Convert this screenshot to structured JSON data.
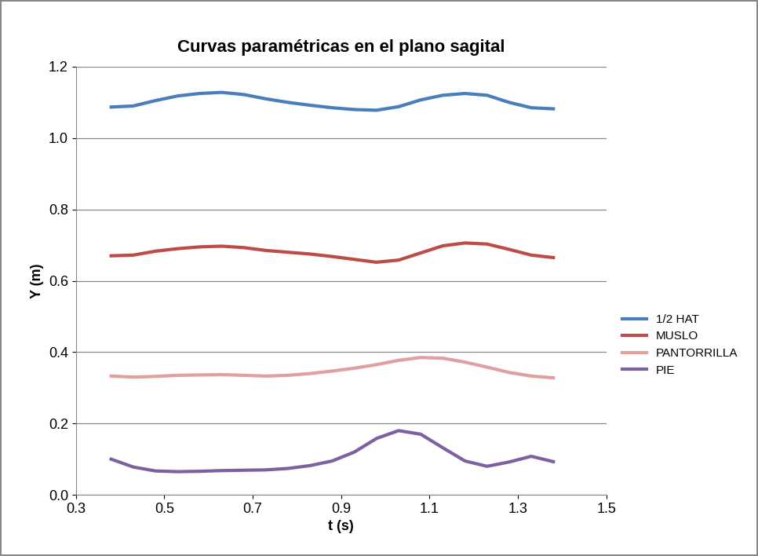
{
  "chart_data": {
    "type": "line",
    "title": "Curvas paramétricas en el plano sagital",
    "x_label": "t (s)",
    "y_label": "Y (m)",
    "xlim": [
      0.3,
      1.5
    ],
    "xticks": [
      0.3,
      0.5,
      0.7,
      0.9,
      1.1,
      1.3,
      1.5
    ],
    "ylim": [
      0.0,
      1.2
    ],
    "yticks": [
      0.0,
      0.2,
      0.4,
      0.6,
      0.8,
      1.0,
      1.2
    ],
    "grid": true,
    "legend": "right",
    "x": [
      0.38,
      0.43,
      0.48,
      0.53,
      0.58,
      0.63,
      0.68,
      0.73,
      0.78,
      0.83,
      0.88,
      0.93,
      0.98,
      1.03,
      1.08,
      1.13,
      1.18,
      1.23,
      1.28,
      1.33,
      1.38
    ],
    "series": [
      {
        "name": "1/2 HAT",
        "color": "#4a7ebb",
        "values": [
          1.087,
          1.09,
          1.105,
          1.118,
          1.125,
          1.128,
          1.122,
          1.11,
          1.1,
          1.092,
          1.085,
          1.08,
          1.078,
          1.088,
          1.107,
          1.12,
          1.125,
          1.12,
          1.1,
          1.085,
          1.082
        ]
      },
      {
        "name": "MUSLO",
        "color": "#be4b48",
        "values": [
          0.67,
          0.672,
          0.683,
          0.69,
          0.695,
          0.697,
          0.693,
          0.685,
          0.68,
          0.675,
          0.668,
          0.66,
          0.652,
          0.658,
          0.678,
          0.698,
          0.706,
          0.703,
          0.688,
          0.672,
          0.665
        ]
      },
      {
        "name": "PANTORRILLA",
        "color": "#e0a0a0",
        "values": [
          0.333,
          0.33,
          0.332,
          0.335,
          0.336,
          0.337,
          0.335,
          0.333,
          0.335,
          0.34,
          0.347,
          0.355,
          0.365,
          0.377,
          0.385,
          0.383,
          0.372,
          0.358,
          0.343,
          0.333,
          0.328
        ]
      },
      {
        "name": "PIE",
        "color": "#7d60a0",
        "values": [
          0.1,
          0.078,
          0.067,
          0.065,
          0.066,
          0.068,
          0.069,
          0.07,
          0.074,
          0.082,
          0.095,
          0.12,
          0.158,
          0.18,
          0.17,
          0.132,
          0.095,
          0.08,
          0.092,
          0.108,
          0.093
        ]
      }
    ]
  }
}
